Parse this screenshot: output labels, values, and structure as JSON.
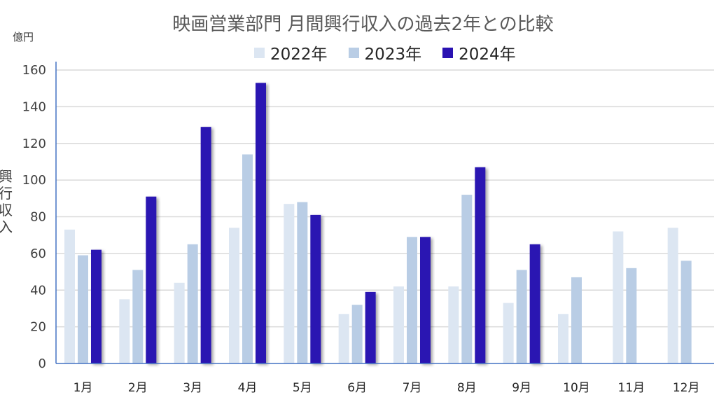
{
  "chart_data": {
    "type": "bar",
    "title": "映画営業部門 月間興行収入の過去2年との比較",
    "unit_label": "億円",
    "ylabel": "興行収入",
    "ylim": [
      0,
      160
    ],
    "yticks": [
      0,
      20,
      40,
      60,
      80,
      100,
      120,
      140,
      160
    ],
    "grid": true,
    "legend_position": "top",
    "categories": [
      "1月",
      "2月",
      "3月",
      "4月",
      "5月",
      "6月",
      "7月",
      "8月",
      "9月",
      "10月",
      "11月",
      "12月"
    ],
    "series": [
      {
        "name": "2022年",
        "color": "#dce6f2",
        "values": [
          73,
          35,
          44,
          74,
          87,
          27,
          42,
          42,
          33,
          27,
          72,
          74
        ]
      },
      {
        "name": "2023年",
        "color": "#b9cde5",
        "values": [
          59,
          51,
          65,
          114,
          88,
          32,
          69,
          92,
          51,
          47,
          52,
          56
        ]
      },
      {
        "name": "2024年",
        "color": "#2a12b2",
        "values": [
          62,
          91,
          129,
          153,
          81,
          39,
          69,
          107,
          65,
          null,
          null,
          null
        ]
      }
    ]
  }
}
